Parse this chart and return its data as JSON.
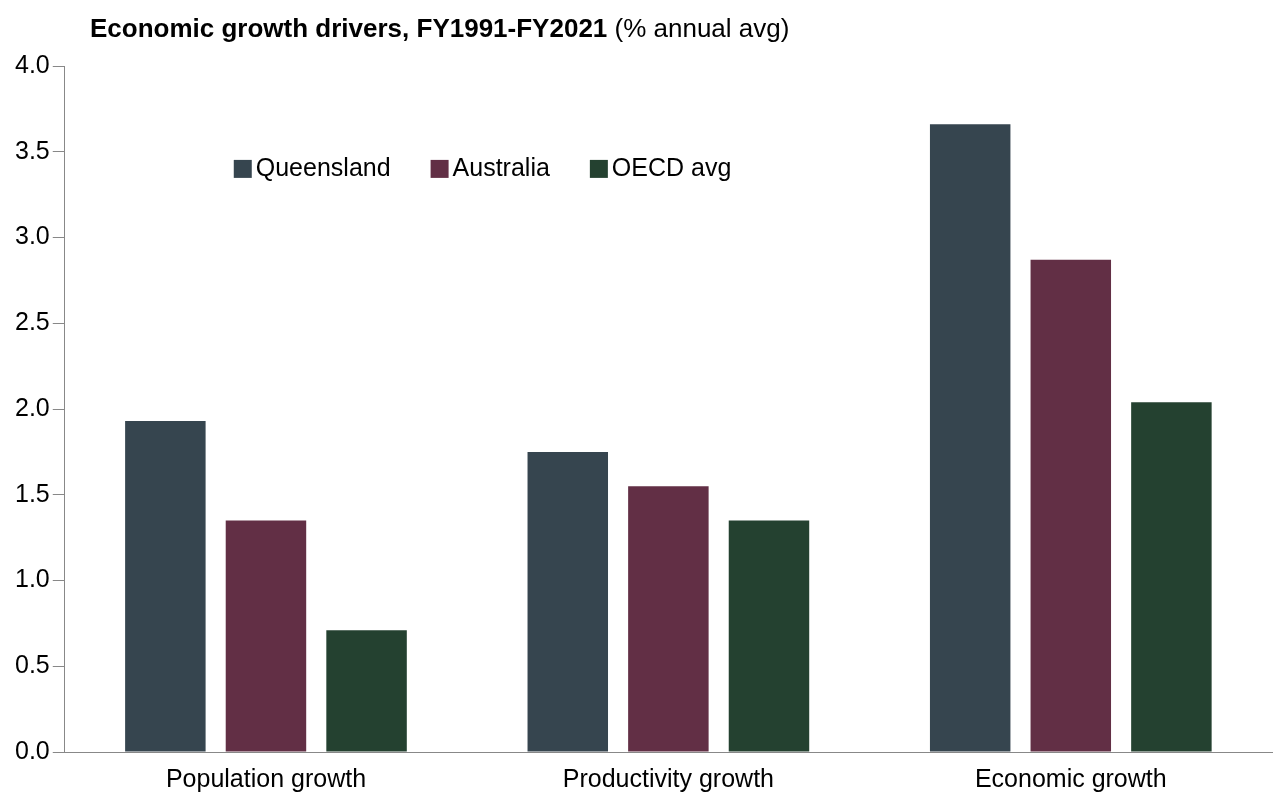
{
  "chart_data": {
    "type": "bar",
    "title": "Economic growth drivers, FY1991-FY2021",
    "subtitle": "(% annual avg)",
    "categories": [
      "Population growth",
      "Productivity growth",
      "Economic growth"
    ],
    "series": [
      {
        "name": "Queensland",
        "color": "#36454f",
        "values": [
          1.93,
          1.75,
          3.66
        ]
      },
      {
        "name": "Australia",
        "color": "#622f45",
        "values": [
          1.35,
          1.55,
          2.87
        ]
      },
      {
        "name": "OECD avg",
        "color": "#244130",
        "values": [
          0.71,
          1.35,
          2.04
        ]
      }
    ],
    "ylim": [
      0,
      4
    ],
    "yticks": [
      {
        "value": 0,
        "label": "0.0"
      },
      0.5,
      {
        "value": 1,
        "label": "1.0"
      },
      1.5,
      {
        "value": 2,
        "label": "2.0"
      },
      2.5,
      {
        "value": 3,
        "label": "3.0"
      },
      3.5,
      {
        "value": 4,
        "label": "4.0"
      }
    ],
    "grid": false,
    "legend": "top left"
  }
}
